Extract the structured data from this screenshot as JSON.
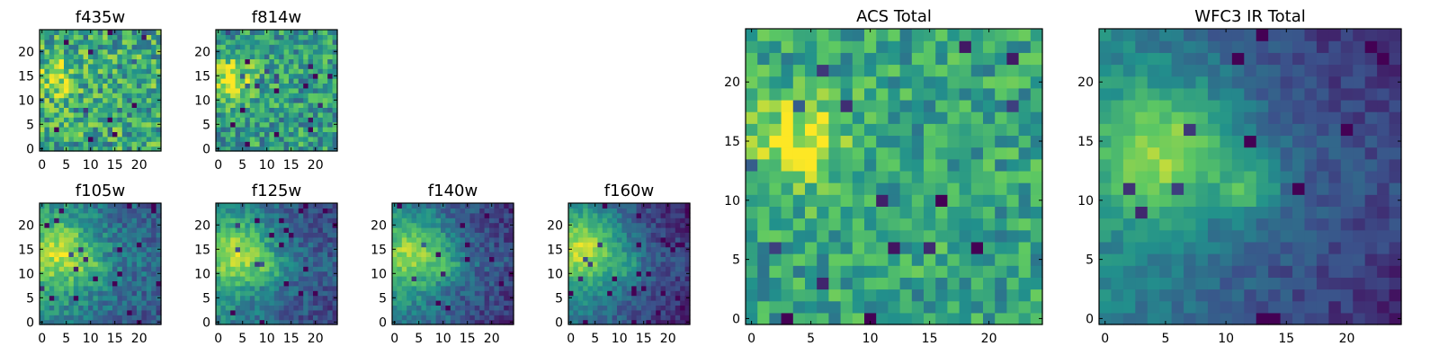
{
  "chart_data": {
    "type": "heatmap",
    "colormap": "viridis",
    "colormap_stops": [
      "#440154",
      "#3b528b",
      "#21918c",
      "#5ec962",
      "#fde725"
    ],
    "grid": false,
    "panels": [
      {
        "title": "f435w",
        "xlim": [
          0,
          24
        ],
        "ylim": [
          0,
          24
        ],
        "xticks": [
          0,
          5,
          10,
          15,
          20
        ],
        "yticks": [
          0,
          5,
          10,
          15,
          20
        ],
        "features": [
          {
            "x": 3,
            "y": 15,
            "sigma": 2.5,
            "amp": 0.35
          }
        ],
        "base": 0.6,
        "noise": 0.28,
        "edge_falloff": 0.0,
        "seed": 11
      },
      {
        "title": "f814w",
        "xlim": [
          0,
          24
        ],
        "ylim": [
          0,
          24
        ],
        "xticks": [
          0,
          5,
          10,
          15,
          20
        ],
        "yticks": [
          0,
          5,
          10,
          15,
          20
        ],
        "features": [
          {
            "x": 3,
            "y": 14,
            "sigma": 3.5,
            "amp": 0.4
          }
        ],
        "base": 0.55,
        "noise": 0.24,
        "edge_falloff": 0.0,
        "seed": 23
      },
      {
        "title": "f105w",
        "xlim": [
          0,
          24
        ],
        "ylim": [
          0,
          24
        ],
        "xticks": [
          0,
          5,
          10,
          15,
          20
        ],
        "yticks": [
          0,
          5,
          10,
          15,
          20
        ],
        "features": [
          {
            "x": 4,
            "y": 14,
            "sigma": 5,
            "amp": 0.45
          },
          {
            "x": 11,
            "y": 11,
            "sigma": 2,
            "amp": 0.12
          }
        ],
        "base": 0.48,
        "noise": 0.14,
        "edge_falloff": 0.22,
        "seed": 37
      },
      {
        "title": "f125w",
        "xlim": [
          0,
          24
        ],
        "ylim": [
          0,
          24
        ],
        "xticks": [
          0,
          5,
          10,
          15,
          20
        ],
        "yticks": [
          0,
          5,
          10,
          15,
          20
        ],
        "features": [
          {
            "x": 4,
            "y": 14,
            "sigma": 5,
            "amp": 0.45
          },
          {
            "x": 11,
            "y": 11,
            "sigma": 2,
            "amp": 0.15
          }
        ],
        "base": 0.46,
        "noise": 0.12,
        "edge_falloff": 0.28,
        "seed": 41
      },
      {
        "title": "f140w",
        "xlim": [
          0,
          24
        ],
        "ylim": [
          0,
          24
        ],
        "xticks": [
          0,
          5,
          10,
          15,
          20
        ],
        "yticks": [
          0,
          5,
          10,
          15,
          20
        ],
        "features": [
          {
            "x": 4,
            "y": 14,
            "sigma": 5,
            "amp": 0.45
          },
          {
            "x": 12,
            "y": 11,
            "sigma": 2,
            "amp": 0.15
          }
        ],
        "base": 0.44,
        "noise": 0.12,
        "edge_falloff": 0.3,
        "seed": 53
      },
      {
        "title": "f160w",
        "xlim": [
          0,
          24
        ],
        "ylim": [
          0,
          24
        ],
        "xticks": [
          0,
          5,
          10,
          15,
          20
        ],
        "yticks": [
          0,
          5,
          10,
          15,
          20
        ],
        "features": [
          {
            "x": 3,
            "y": 15,
            "sigma": 5.5,
            "amp": 0.5
          },
          {
            "x": 12,
            "y": 11,
            "sigma": 2,
            "amp": 0.15
          }
        ],
        "base": 0.42,
        "noise": 0.1,
        "edge_falloff": 0.34,
        "seed": 67
      },
      {
        "title": "ACS Total",
        "xlim": [
          0,
          24
        ],
        "ylim": [
          0,
          24
        ],
        "xticks": [
          0,
          5,
          10,
          15,
          20
        ],
        "yticks": [
          0,
          5,
          10,
          15,
          20
        ],
        "features": [
          {
            "x": 4,
            "y": 15,
            "sigma": 3,
            "amp": 0.38
          }
        ],
        "base": 0.58,
        "noise": 0.2,
        "edge_falloff": 0.0,
        "seed": 79
      },
      {
        "title": "WFC3 IR Total",
        "xlim": [
          0,
          24
        ],
        "ylim": [
          0,
          24
        ],
        "xticks": [
          0,
          5,
          10,
          15,
          20
        ],
        "yticks": [
          0,
          5,
          10,
          15,
          20
        ],
        "features": [
          {
            "x": 5,
            "y": 14,
            "sigma": 4,
            "amp": 0.45
          },
          {
            "x": 12,
            "y": 11,
            "sigma": 1.5,
            "amp": 0.3
          }
        ],
        "base": 0.45,
        "noise": 0.08,
        "edge_falloff": 0.35,
        "seed": 97
      }
    ]
  }
}
